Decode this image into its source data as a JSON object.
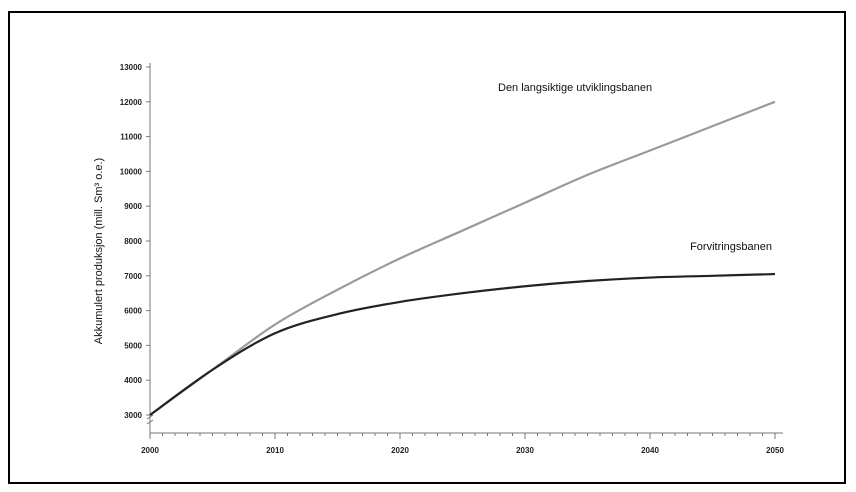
{
  "chart_data": {
    "type": "line",
    "title": "",
    "xlabel": "",
    "ylabel": "Akkumulert produksjon (mill. Sm³ o.e.)",
    "xlim": [
      2000,
      2050
    ],
    "ylim": [
      2000,
      13000
    ],
    "x_ticks": [
      "2000",
      "2010",
      "2020",
      "2030",
      "2040",
      "2050"
    ],
    "y_ticks": [
      "3000",
      "4000",
      "5000",
      "6000",
      "7000",
      "8000",
      "9000",
      "10000",
      "11000",
      "12000",
      "13000"
    ],
    "grid": false,
    "series": [
      {
        "name": "Den langsiktige utviklingsbanen",
        "color": "#9a9a9a",
        "x": [
          2000,
          2005,
          2010,
          2015,
          2020,
          2025,
          2030,
          2035,
          2040,
          2045,
          2050
        ],
        "y": [
          3000,
          4300,
          5600,
          6600,
          7500,
          8300,
          9100,
          9900,
          10600,
          11300,
          12000
        ]
      },
      {
        "name": "Forvitringsbanen",
        "color": "#222222",
        "x": [
          2000,
          2005,
          2010,
          2015,
          2020,
          2025,
          2030,
          2035,
          2040,
          2045,
          2050
        ],
        "y": [
          3000,
          4300,
          5350,
          5900,
          6250,
          6500,
          6700,
          6850,
          6950,
          7000,
          7050
        ]
      }
    ]
  }
}
